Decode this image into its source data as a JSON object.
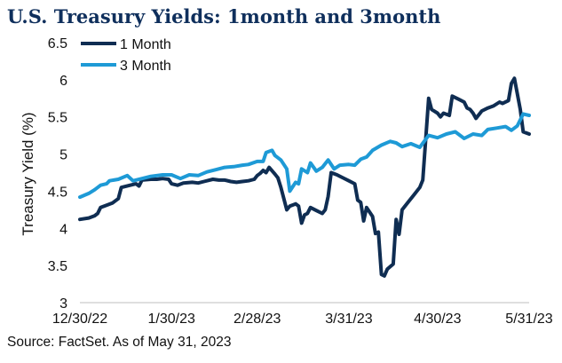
{
  "title": "U.S. Treasury Yields: 1month and 3month",
  "source": "Source: FactSet. As of May 31, 2023",
  "chart_data": {
    "type": "line",
    "ylabel": "Treasury Yield (%)",
    "xlabel": "",
    "ylim": [
      3,
      6.5
    ],
    "yticks": [
      "3",
      "3.5",
      "4",
      "4.5",
      "5",
      "5.5",
      "6",
      "6.5"
    ],
    "xlim": [
      "2022-12-30",
      "2023-05-31"
    ],
    "xticks": [
      {
        "date": "2022-12-30",
        "label": "12/30/22"
      },
      {
        "date": "2023-01-30",
        "label": "1/30/23"
      },
      {
        "date": "2023-02-28",
        "label": "2/28/23"
      },
      {
        "date": "2023-03-31",
        "label": "3/31/23"
      },
      {
        "date": "2023-04-30",
        "label": "4/30/23"
      },
      {
        "date": "2023-05-31",
        "label": "5/31/23"
      }
    ],
    "grid": false,
    "legend_position": "top-left",
    "series": [
      {
        "name": "1 Month",
        "color": "#0f2d52",
        "points": [
          [
            "2022-12-30",
            4.12
          ],
          [
            "2023-01-02",
            4.14
          ],
          [
            "2023-01-04",
            4.17
          ],
          [
            "2023-01-05",
            4.2
          ],
          [
            "2023-01-06",
            4.28
          ],
          [
            "2023-01-08",
            4.31
          ],
          [
            "2023-01-10",
            4.34
          ],
          [
            "2023-01-11",
            4.37
          ],
          [
            "2023-01-12",
            4.4
          ],
          [
            "2023-01-13",
            4.55
          ],
          [
            "2023-01-16",
            4.58
          ],
          [
            "2023-01-18",
            4.6
          ],
          [
            "2023-01-19",
            4.57
          ],
          [
            "2023-01-20",
            4.65
          ],
          [
            "2023-01-23",
            4.66
          ],
          [
            "2023-01-25",
            4.66
          ],
          [
            "2023-01-27",
            4.67
          ],
          [
            "2023-01-29",
            4.66
          ],
          [
            "2023-01-30",
            4.6
          ],
          [
            "2023-02-01",
            4.58
          ],
          [
            "2023-02-03",
            4.61
          ],
          [
            "2023-02-06",
            4.62
          ],
          [
            "2023-02-08",
            4.61
          ],
          [
            "2023-02-10",
            4.63
          ],
          [
            "2023-02-13",
            4.66
          ],
          [
            "2023-02-15",
            4.65
          ],
          [
            "2023-02-17",
            4.65
          ],
          [
            "2023-02-19",
            4.63
          ],
          [
            "2023-02-21",
            4.62
          ],
          [
            "2023-02-23",
            4.63
          ],
          [
            "2023-02-25",
            4.64
          ],
          [
            "2023-02-27",
            4.66
          ],
          [
            "2023-02-28",
            4.71
          ],
          [
            "2023-03-01",
            4.74
          ],
          [
            "2023-03-02",
            4.78
          ],
          [
            "2023-03-03",
            4.75
          ],
          [
            "2023-03-04",
            4.82
          ],
          [
            "2023-03-06",
            4.73
          ],
          [
            "2023-03-07",
            4.68
          ],
          [
            "2023-03-08",
            4.55
          ],
          [
            "2023-03-10",
            4.25
          ],
          [
            "2023-03-11",
            4.3
          ],
          [
            "2023-03-13",
            4.33
          ],
          [
            "2023-03-14",
            4.3
          ],
          [
            "2023-03-15",
            4.07
          ],
          [
            "2023-03-16",
            4.18
          ],
          [
            "2023-03-17",
            4.2
          ],
          [
            "2023-03-18",
            4.28
          ],
          [
            "2023-03-20",
            4.24
          ],
          [
            "2023-03-22",
            4.2
          ],
          [
            "2023-03-23",
            4.25
          ],
          [
            "2023-03-24",
            4.43
          ],
          [
            "2023-03-25",
            4.75
          ],
          [
            "2023-03-27",
            4.72
          ],
          [
            "2023-03-29",
            4.68
          ],
          [
            "2023-03-31",
            4.64
          ],
          [
            "2023-04-02",
            4.6
          ],
          [
            "2023-04-03",
            4.38
          ],
          [
            "2023-04-04",
            4.35
          ],
          [
            "2023-04-05",
            4.1
          ],
          [
            "2023-04-06",
            4.28
          ],
          [
            "2023-04-08",
            4.16
          ],
          [
            "2023-04-09",
            3.93
          ],
          [
            "2023-04-10",
            3.95
          ],
          [
            "2023-04-11",
            3.38
          ],
          [
            "2023-04-12",
            3.36
          ],
          [
            "2023-04-13",
            3.45
          ],
          [
            "2023-04-15",
            3.52
          ],
          [
            "2023-04-16",
            4.12
          ],
          [
            "2023-04-17",
            3.92
          ],
          [
            "2023-04-18",
            4.25
          ],
          [
            "2023-04-20",
            4.35
          ],
          [
            "2023-04-22",
            4.45
          ],
          [
            "2023-04-24",
            4.55
          ],
          [
            "2023-04-25",
            4.65
          ],
          [
            "2023-04-26",
            5.2
          ],
          [
            "2023-04-27",
            5.75
          ],
          [
            "2023-04-28",
            5.6
          ],
          [
            "2023-04-30",
            5.55
          ],
          [
            "2023-05-01",
            5.5
          ],
          [
            "2023-05-02",
            5.55
          ],
          [
            "2023-05-04",
            5.52
          ],
          [
            "2023-05-05",
            5.78
          ],
          [
            "2023-05-07",
            5.74
          ],
          [
            "2023-05-09",
            5.7
          ],
          [
            "2023-05-10",
            5.62
          ],
          [
            "2023-05-11",
            5.6
          ],
          [
            "2023-05-12",
            5.55
          ],
          [
            "2023-05-13",
            5.48
          ],
          [
            "2023-05-15",
            5.58
          ],
          [
            "2023-05-17",
            5.62
          ],
          [
            "2023-05-19",
            5.65
          ],
          [
            "2023-05-21",
            5.7
          ],
          [
            "2023-05-22",
            5.68
          ],
          [
            "2023-05-24",
            5.72
          ],
          [
            "2023-05-25",
            5.95
          ],
          [
            "2023-05-26",
            6.02
          ],
          [
            "2023-05-28",
            5.6
          ],
          [
            "2023-05-29",
            5.3
          ],
          [
            "2023-05-31",
            5.27
          ]
        ]
      },
      {
        "name": "3 Month",
        "color": "#1e9ad6",
        "points": [
          [
            "2022-12-30",
            4.42
          ],
          [
            "2023-01-02",
            4.47
          ],
          [
            "2023-01-04",
            4.52
          ],
          [
            "2023-01-06",
            4.58
          ],
          [
            "2023-01-08",
            4.6
          ],
          [
            "2023-01-09",
            4.64
          ],
          [
            "2023-01-12",
            4.66
          ],
          [
            "2023-01-15",
            4.71
          ],
          [
            "2023-01-17",
            4.64
          ],
          [
            "2023-01-20",
            4.67
          ],
          [
            "2023-01-23",
            4.7
          ],
          [
            "2023-01-27",
            4.72
          ],
          [
            "2023-01-30",
            4.72
          ],
          [
            "2023-02-02",
            4.67
          ],
          [
            "2023-02-05",
            4.72
          ],
          [
            "2023-02-08",
            4.71
          ],
          [
            "2023-02-11",
            4.76
          ],
          [
            "2023-02-14",
            4.79
          ],
          [
            "2023-02-17",
            4.82
          ],
          [
            "2023-02-20",
            4.83
          ],
          [
            "2023-02-23",
            4.85
          ],
          [
            "2023-02-25",
            4.86
          ],
          [
            "2023-02-28",
            4.9
          ],
          [
            "2023-03-02",
            4.9
          ],
          [
            "2023-03-03",
            5.02
          ],
          [
            "2023-03-05",
            5.05
          ],
          [
            "2023-03-06",
            4.98
          ],
          [
            "2023-03-08",
            4.92
          ],
          [
            "2023-03-10",
            4.8
          ],
          [
            "2023-03-11",
            4.5
          ],
          [
            "2023-03-13",
            4.62
          ],
          [
            "2023-03-14",
            4.6
          ],
          [
            "2023-03-15",
            4.8
          ],
          [
            "2023-03-17",
            4.75
          ],
          [
            "2023-03-18",
            4.88
          ],
          [
            "2023-03-20",
            4.77
          ],
          [
            "2023-03-22",
            4.82
          ],
          [
            "2023-03-24",
            4.92
          ],
          [
            "2023-03-26",
            4.8
          ],
          [
            "2023-03-28",
            4.85
          ],
          [
            "2023-03-31",
            4.86
          ],
          [
            "2023-04-02",
            4.85
          ],
          [
            "2023-04-04",
            4.93
          ],
          [
            "2023-04-06",
            4.96
          ],
          [
            "2023-04-08",
            5.05
          ],
          [
            "2023-04-11",
            5.12
          ],
          [
            "2023-04-14",
            5.17
          ],
          [
            "2023-04-16",
            5.15
          ],
          [
            "2023-04-18",
            5.1
          ],
          [
            "2023-04-21",
            5.14
          ],
          [
            "2023-04-24",
            5.09
          ],
          [
            "2023-04-27",
            5.25
          ],
          [
            "2023-04-30",
            5.22
          ],
          [
            "2023-05-03",
            5.27
          ],
          [
            "2023-05-06",
            5.3
          ],
          [
            "2023-05-09",
            5.21
          ],
          [
            "2023-05-12",
            5.27
          ],
          [
            "2023-05-15",
            5.25
          ],
          [
            "2023-05-17",
            5.33
          ],
          [
            "2023-05-20",
            5.35
          ],
          [
            "2023-05-23",
            5.37
          ],
          [
            "2023-05-25",
            5.32
          ],
          [
            "2023-05-27",
            5.38
          ],
          [
            "2023-05-29",
            5.54
          ],
          [
            "2023-05-31",
            5.52
          ]
        ]
      }
    ]
  }
}
